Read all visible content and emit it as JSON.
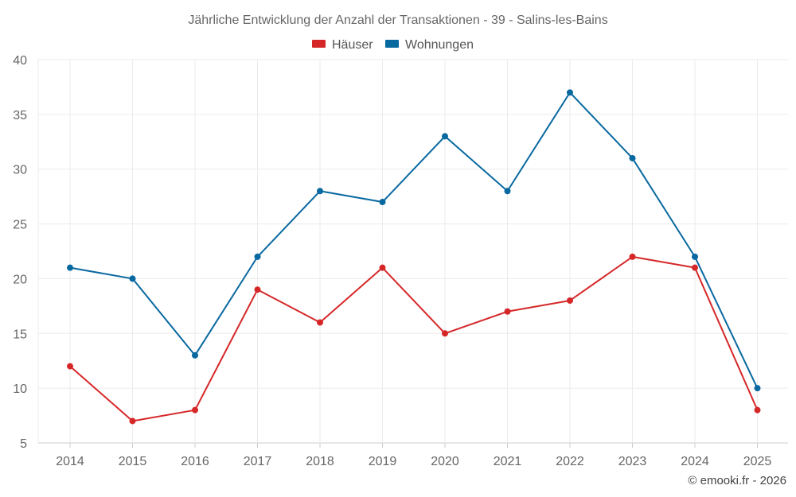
{
  "chart_data": {
    "type": "line",
    "title": "Jährliche Entwicklung der Anzahl der Transaktionen - 39 - Salins-les-Bains",
    "categories": [
      "2014",
      "2015",
      "2016",
      "2017",
      "2018",
      "2019",
      "2020",
      "2021",
      "2022",
      "2023",
      "2024",
      "2025"
    ],
    "series": [
      {
        "name": "Häuser",
        "color": "#d62728",
        "values": [
          12,
          7,
          8,
          19,
          16,
          21,
          15,
          17,
          18,
          22,
          21,
          8
        ]
      },
      {
        "name": "Wohnungen",
        "color": "#0868a0",
        "values": [
          21,
          20,
          13,
          22,
          28,
          27,
          33,
          28,
          37,
          31,
          22,
          10
        ]
      }
    ],
    "ylim": [
      5,
      40
    ],
    "yticks": [
      5,
      10,
      15,
      20,
      25,
      30,
      35,
      40
    ],
    "xlabel": "",
    "ylabel": "",
    "grid": true,
    "legend_position": "top-center"
  },
  "credit": "© emooki.fr - 2026"
}
